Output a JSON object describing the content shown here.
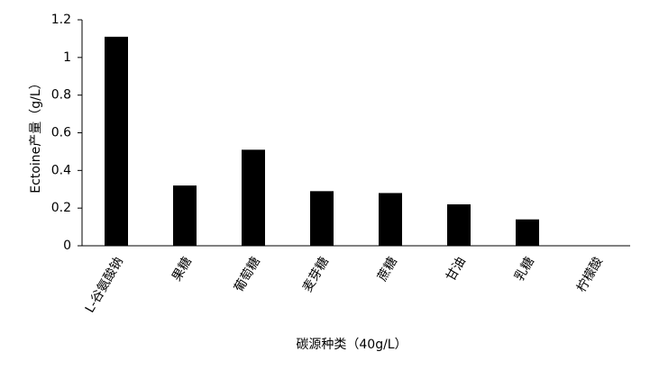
{
  "chart_data": {
    "type": "bar",
    "x_label": "碳源种类（40g/L）",
    "y_label": "Ectoine产量（g/L）",
    "categories": [
      "L-谷氨酸钠",
      "果糖",
      "葡萄糖",
      "麦芽糖",
      "蔗糖",
      "甘油",
      "乳糖",
      "柠檬酸"
    ],
    "values": [
      1.11,
      0.32,
      0.51,
      0.29,
      0.28,
      0.22,
      0.14,
      0
    ],
    "color": "#000000",
    "ylim": [
      0,
      1.2
    ],
    "yticks": [
      0,
      0.2,
      0.4,
      0.6,
      0.8,
      1,
      1.2
    ],
    "grid": false
  }
}
